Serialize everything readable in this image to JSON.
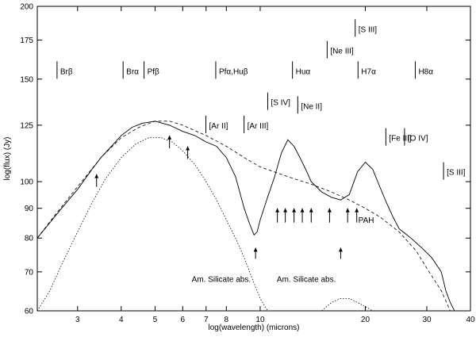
{
  "chart_data": {
    "type": "line",
    "title": "",
    "xlabel": "log(wavelength) (microns)",
    "ylabel": "log(flux) (Jy)",
    "xscale": "log",
    "yscale": "log",
    "xlim": [
      2.3,
      40
    ],
    "ylim": [
      60,
      200
    ],
    "grid": false,
    "legend": "none",
    "x_ticks": [
      3,
      4,
      5,
      6,
      7,
      8,
      10,
      20,
      30,
      40
    ],
    "y_ticks": [
      60,
      70,
      80,
      90,
      100,
      125,
      150,
      175,
      200
    ],
    "series": [
      {
        "style": "solid",
        "x": [
          2.3,
          2.5,
          2.7,
          3.0,
          3.3,
          3.5,
          3.8,
          4.0,
          4.3,
          4.6,
          5.0,
          5.5,
          6.0,
          6.5,
          7.0,
          7.5,
          8.0,
          8.5,
          9.0,
          9.3,
          9.6,
          9.8,
          10.0,
          10.5,
          11.0,
          11.5,
          12.0,
          12.5,
          13.0,
          13.5,
          14.0,
          15.0,
          16.0,
          17.0,
          18.0,
          19.0,
          20.0,
          21.0,
          22.0,
          23.0,
          24.0,
          25.0,
          27.0,
          29.0,
          31.0,
          33.0,
          34.0,
          35.0,
          36.0
        ],
        "y": [
          80,
          85,
          90,
          97,
          105,
          110,
          116,
          120,
          124,
          126,
          127,
          125,
          122,
          120,
          117,
          115,
          110,
          102,
          90,
          85,
          81,
          82,
          86,
          94,
          102,
          112,
          118,
          115,
          110,
          105,
          100,
          96,
          94,
          93,
          95,
          104,
          108,
          105,
          98,
          92,
          87,
          83,
          80,
          77,
          74,
          70,
          65,
          62,
          60
        ]
      },
      {
        "style": "dashed",
        "x": [
          2.3,
          2.6,
          3.0,
          3.5,
          4.0,
          4.5,
          5.0,
          5.5,
          6.0,
          7.0,
          8.0,
          9.0,
          10.0,
          12.0,
          14.0,
          16.0,
          18.0,
          20.0,
          22.0,
          25.0,
          28.0,
          30.0,
          33.0,
          35.0
        ],
        "y": [
          80,
          88,
          98,
          110,
          119,
          124,
          127,
          127,
          125,
          120,
          115,
          110,
          106,
          102,
          99,
          96,
          93,
          90,
          87,
          82,
          76,
          71,
          65,
          60
        ]
      },
      {
        "style": "dotted",
        "x": [
          2.3,
          2.5,
          2.7,
          3.0,
          3.3,
          3.6,
          4.0,
          4.4,
          4.8,
          5.2,
          5.6,
          6.0,
          6.5,
          7.0,
          7.5,
          8.0,
          8.5,
          9.0,
          9.5,
          10.0,
          10.5
        ],
        "y": [
          60,
          65,
          72,
          82,
          92,
          101,
          110,
          116,
          119,
          119,
          117,
          113,
          107,
          100,
          93,
          86,
          80,
          74,
          68,
          63,
          60
        ]
      },
      {
        "style": "dotted",
        "x": [
          15.0,
          16.0,
          17.0,
          18.0,
          19.0,
          20.0,
          21.0
        ],
        "y": [
          60,
          62,
          63,
          63,
          62,
          61,
          60
        ]
      }
    ],
    "line_labels": [
      {
        "text": "Brβ",
        "x": 2.62,
        "y": 155
      },
      {
        "text": "Brα",
        "x": 4.05,
        "y": 155
      },
      {
        "text": "Pfβ",
        "x": 4.65,
        "y": 155
      },
      {
        "text": "Pfα,Huβ",
        "x": 7.46,
        "y": 155
      },
      {
        "text": "Huα",
        "x": 12.37,
        "y": 155
      },
      {
        "text": "[Ne III]",
        "x": 15.55,
        "y": 168
      },
      {
        "text": "[S III]",
        "x": 18.71,
        "y": 183
      },
      {
        "text": "H7α",
        "x": 19.06,
        "y": 155
      },
      {
        "text": "H8α",
        "x": 27.8,
        "y": 155
      },
      {
        "text": "[S IV]",
        "x": 10.51,
        "y": 137
      },
      {
        "text": "[Ne II]",
        "x": 12.81,
        "y": 135
      },
      {
        "text": "[Ar II]",
        "x": 6.99,
        "y": 125
      },
      {
        "text": "[Ar III]",
        "x": 8.99,
        "y": 125
      },
      {
        "text": "[Fe III]",
        "x": 22.9,
        "y": 119
      },
      {
        "text": "[O IV]",
        "x": 25.9,
        "y": 119
      },
      {
        "text": "[S III]",
        "x": 33.5,
        "y": 104
      }
    ],
    "annotations": [
      {
        "text": "Am. Silicate abs.",
        "x": 9.7,
        "y": 73
      },
      {
        "text": "Am. Silicate abs.",
        "x": 17.0,
        "y": 73
      },
      {
        "text": "PAH",
        "x": 18.9,
        "y": 86
      }
    ]
  }
}
